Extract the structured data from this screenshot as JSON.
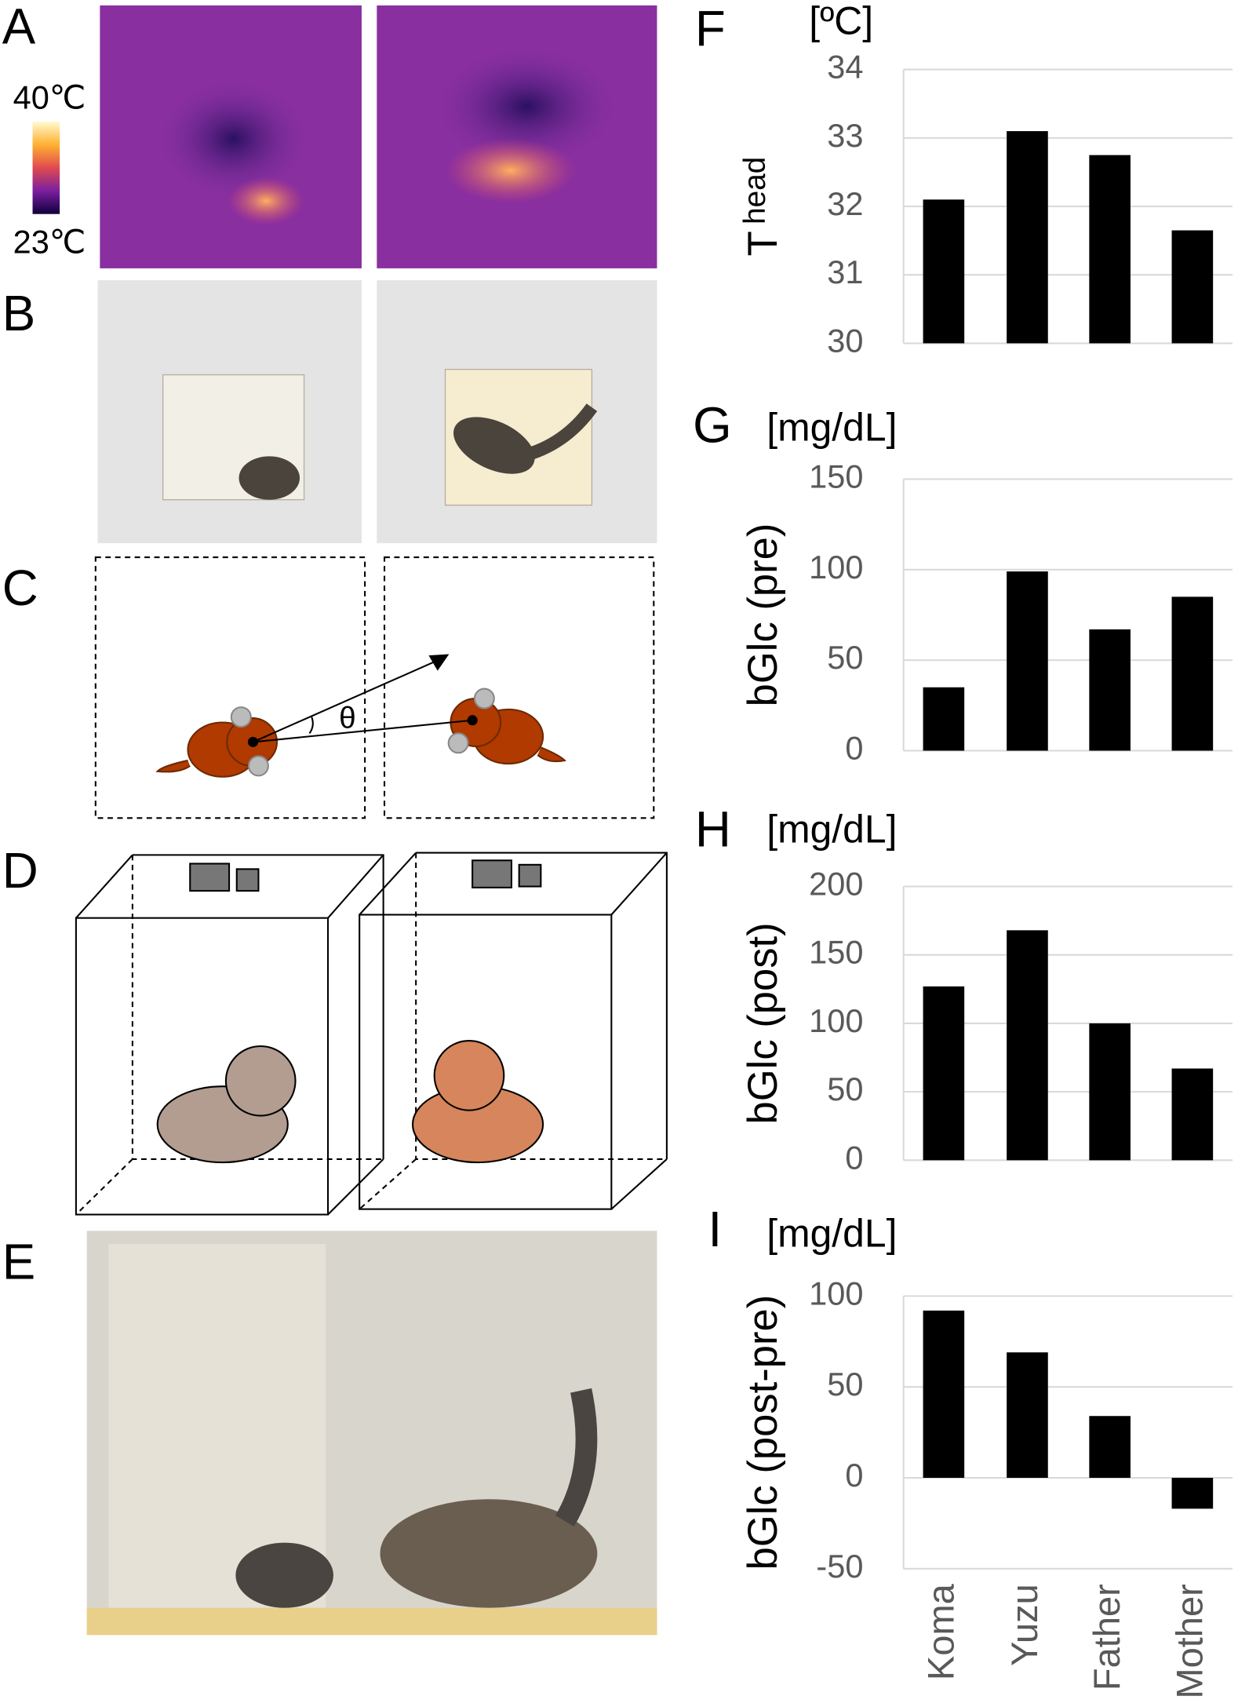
{
  "panel_labels": [
    "A",
    "B",
    "C",
    "D",
    "E",
    "F",
    "G",
    "H",
    "I"
  ],
  "colorbar": {
    "max_label": "40℃",
    "min_label": "23℃"
  },
  "diagram": {
    "angle_label": "θ"
  },
  "chart_data": [
    {
      "type": "bar",
      "unit": "[ºC]",
      "ylabel": "T",
      "ylabel_sub": "head",
      "categories": [
        null,
        null,
        null,
        null
      ],
      "values": [
        32.1,
        33.1,
        32.75,
        31.65
      ],
      "color": "#000000",
      "ylim": [
        30,
        34
      ],
      "yticks": [
        30,
        31,
        32,
        33,
        34
      ],
      "grid": true
    },
    {
      "type": "bar",
      "unit": "[mg/dL]",
      "ylabel": "bGlc (pre)",
      "categories": [
        null,
        null,
        null,
        null
      ],
      "values": [
        35,
        99,
        67,
        85
      ],
      "color": "#000000",
      "ylim": [
        0,
        150
      ],
      "yticks": [
        0,
        50,
        100,
        150
      ],
      "grid": true
    },
    {
      "type": "bar",
      "unit": "[mg/dL]",
      "ylabel": "bGlc (post)",
      "categories": [
        null,
        null,
        null,
        null
      ],
      "values": [
        127,
        168,
        100,
        67
      ],
      "color": "#000000",
      "ylim": [
        0,
        200
      ],
      "yticks": [
        0,
        50,
        100,
        150,
        200
      ],
      "grid": true
    },
    {
      "type": "bar",
      "unit": "[mg/dL]",
      "ylabel": "bGlc (post-pre)",
      "categories": [
        "Koma",
        "Yuzu",
        "Father",
        "Mother"
      ],
      "values": [
        92,
        69,
        34,
        -17
      ],
      "color": "#000000",
      "ylim": [
        -50,
        100
      ],
      "yticks": [
        -50,
        0,
        50,
        100
      ],
      "grid": true
    }
  ]
}
